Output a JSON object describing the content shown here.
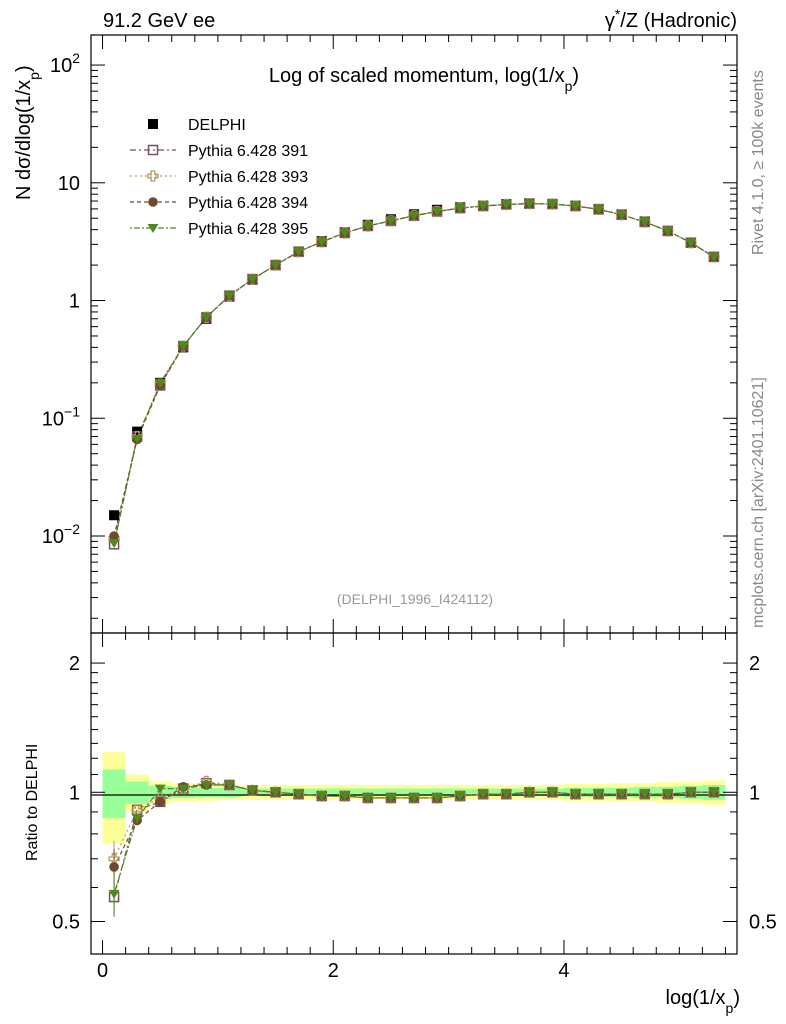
{
  "header": {
    "left": "91.2 GeV ee",
    "right_prefix": "γ",
    "right_sup": "*",
    "right_suffix": "/Z (Hadronic)"
  },
  "side_text": {
    "rivet": "Rivet 4.1.0, ≥ 100k events",
    "mcplots": "mcplots.cern.ch [arXiv:2401.10621]"
  },
  "chart_data": [
    {
      "type": "scatter",
      "title_main": "Log of scaled momentum, log(1/x",
      "title_sub": "p",
      "title_end": ")",
      "analysis_tag": "(DELPHI_1996_I424112)",
      "ylabel_pre": "N   dσ/dlog(1/x",
      "ylabel_sub": "p",
      "ylabel_end": ")",
      "xlabel_pre": "log(1/x",
      "xlabel_sub": "p",
      "xlabel_end": ")",
      "y_scale": "log",
      "xlim": [
        -0.1,
        5.5
      ],
      "ylim": [
        0.0015,
        180
      ],
      "x_ticks": [
        "0",
        "2",
        "4"
      ],
      "y_ticks": [
        {
          "base": "10",
          "exp": "−2",
          "value": 0.01
        },
        {
          "base": "10",
          "exp": "−1",
          "value": 0.1
        },
        {
          "base": "1",
          "exp": "",
          "value": 1
        },
        {
          "base": "10",
          "exp": "",
          "value": 10
        },
        {
          "base": "10",
          "exp": "2",
          "value": 100
        }
      ],
      "legend_position": "top-left",
      "x": [
        0.1,
        0.3,
        0.5,
        0.7,
        0.9,
        1.1,
        1.3,
        1.5,
        1.7,
        1.9,
        2.1,
        2.3,
        2.5,
        2.7,
        2.9,
        3.1,
        3.3,
        3.5,
        3.7,
        3.9,
        4.1,
        4.3,
        4.5,
        4.7,
        4.9,
        5.1,
        5.3
      ],
      "series": [
        {
          "name": "DELPHI",
          "marker": "square-filled",
          "color": "#000000",
          "values": [
            0.015,
            0.077,
            0.2,
            0.4,
            0.7,
            1.08,
            1.5,
            2.0,
            2.6,
            3.2,
            3.8,
            4.4,
            4.9,
            5.4,
            5.9,
            6.2,
            6.4,
            6.6,
            6.7,
            6.6,
            6.4,
            6.0,
            5.4,
            4.7,
            3.9,
            3.1,
            2.35
          ]
        },
        {
          "name": "Pythia 6.428 391",
          "marker": "square-open",
          "color": "#7a4f5a",
          "values": [
            0.0085,
            0.07,
            0.19,
            0.41,
            0.72,
            1.1,
            1.52,
            2.0,
            2.6,
            3.15,
            3.75,
            4.3,
            4.75,
            5.25,
            5.7,
            6.1,
            6.35,
            6.55,
            6.65,
            6.6,
            6.35,
            5.95,
            5.35,
            4.65,
            3.9,
            3.1,
            2.35
          ]
        },
        {
          "name": "Pythia 6.428 393",
          "marker": "cross-open",
          "color": "#b89a6a",
          "values": [
            0.0095,
            0.07,
            0.195,
            0.41,
            0.72,
            1.1,
            1.52,
            2.0,
            2.6,
            3.15,
            3.75,
            4.3,
            4.75,
            5.25,
            5.7,
            6.1,
            6.35,
            6.55,
            6.65,
            6.6,
            6.35,
            5.95,
            5.35,
            4.65,
            3.9,
            3.1,
            2.35
          ]
        },
        {
          "name": "Pythia 6.428 394",
          "marker": "circle-filled",
          "color": "#6b4a2f",
          "values": [
            0.01,
            0.066,
            0.19,
            0.41,
            0.72,
            1.1,
            1.52,
            2.0,
            2.6,
            3.15,
            3.75,
            4.3,
            4.75,
            5.25,
            5.7,
            6.1,
            6.35,
            6.55,
            6.65,
            6.6,
            6.35,
            5.95,
            5.35,
            4.65,
            3.9,
            3.1,
            2.35
          ]
        },
        {
          "name": "Pythia 6.428 395",
          "marker": "triangle-down-filled",
          "color": "#4f8a1f",
          "values": [
            0.0087,
            0.067,
            0.2,
            0.41,
            0.72,
            1.1,
            1.52,
            2.0,
            2.6,
            3.15,
            3.75,
            4.3,
            4.75,
            5.25,
            5.7,
            6.1,
            6.35,
            6.55,
            6.65,
            6.6,
            6.35,
            5.95,
            5.35,
            4.65,
            3.9,
            3.1,
            2.35
          ]
        }
      ]
    },
    {
      "type": "scatter",
      "ylabel": "Ratio to DELPHI",
      "y_scale": "log",
      "xlim": [
        -0.1,
        5.5
      ],
      "ylim": [
        0.42,
        2.35
      ],
      "y_ticks": [
        {
          "label": "0.5",
          "value": 0.5
        },
        {
          "label": "1",
          "value": 1
        },
        {
          "label": "2",
          "value": 2
        }
      ],
      "bins": [
        0.0,
        0.2,
        0.4,
        0.6,
        0.8,
        1.0,
        1.2,
        1.4,
        1.6,
        1.8,
        2.0,
        2.2,
        2.4,
        2.6,
        2.8,
        3.0,
        3.2,
        3.4,
        3.6,
        3.8,
        4.0,
        4.2,
        4.4,
        4.6,
        4.8,
        5.0,
        5.2,
        5.4
      ],
      "band_outer": [
        0.24,
        0.1,
        0.06,
        0.05,
        0.045,
        0.04,
        0.04,
        0.04,
        0.04,
        0.04,
        0.04,
        0.04,
        0.04,
        0.04,
        0.04,
        0.04,
        0.04,
        0.04,
        0.04,
        0.04,
        0.045,
        0.045,
        0.05,
        0.05,
        0.055,
        0.06,
        0.065
      ],
      "band_inner": [
        0.13,
        0.06,
        0.035,
        0.03,
        0.025,
        0.025,
        0.02,
        0.02,
        0.02,
        0.02,
        0.02,
        0.02,
        0.02,
        0.02,
        0.02,
        0.02,
        0.02,
        0.02,
        0.02,
        0.02,
        0.025,
        0.025,
        0.025,
        0.03,
        0.03,
        0.035,
        0.04
      ],
      "x": [
        0.1,
        0.3,
        0.5,
        0.7,
        0.9,
        1.1,
        1.3,
        1.5,
        1.7,
        1.9,
        2.1,
        2.3,
        2.5,
        2.7,
        2.9,
        3.1,
        3.3,
        3.5,
        3.7,
        3.9,
        4.1,
        4.3,
        4.5,
        4.7,
        4.9,
        5.1,
        5.3
      ],
      "series": [
        {
          "name": "Pythia 6.428 391",
          "values": [
            0.57,
            0.91,
            0.95,
            1.02,
            1.05,
            1.04,
            1.01,
            1.0,
            0.99,
            0.98,
            0.98,
            0.97,
            0.97,
            0.97,
            0.97,
            0.98,
            0.99,
            0.99,
            1.0,
            1.0,
            0.99,
            0.99,
            0.99,
            0.99,
            0.99,
            1.0,
            1.0
          ]
        },
        {
          "name": "Pythia 6.428 393",
          "values": [
            0.7,
            0.91,
            0.97,
            1.02,
            1.06,
            1.04,
            1.01,
            1.0,
            0.99,
            0.98,
            0.98,
            0.97,
            0.97,
            0.97,
            0.97,
            0.98,
            0.99,
            0.99,
            1.0,
            1.0,
            0.99,
            0.99,
            0.99,
            0.99,
            0.99,
            1.0,
            1.0
          ]
        },
        {
          "name": "Pythia 6.428 394",
          "values": [
            0.67,
            0.86,
            0.95,
            1.03,
            1.04,
            1.04,
            1.01,
            1.0,
            0.99,
            0.98,
            0.98,
            0.97,
            0.97,
            0.97,
            0.97,
            0.98,
            0.99,
            0.99,
            1.0,
            1.0,
            0.99,
            0.99,
            0.99,
            0.99,
            0.99,
            1.0,
            1.0
          ]
        },
        {
          "name": "Pythia 6.428 395",
          "values": [
            0.58,
            0.87,
            1.02,
            1.02,
            1.04,
            1.04,
            1.01,
            1.0,
            0.99,
            0.98,
            0.98,
            0.97,
            0.97,
            0.97,
            0.97,
            0.98,
            0.99,
            0.99,
            1.0,
            1.0,
            0.99,
            0.99,
            0.99,
            0.99,
            0.99,
            1.0,
            1.0
          ]
        }
      ]
    }
  ]
}
